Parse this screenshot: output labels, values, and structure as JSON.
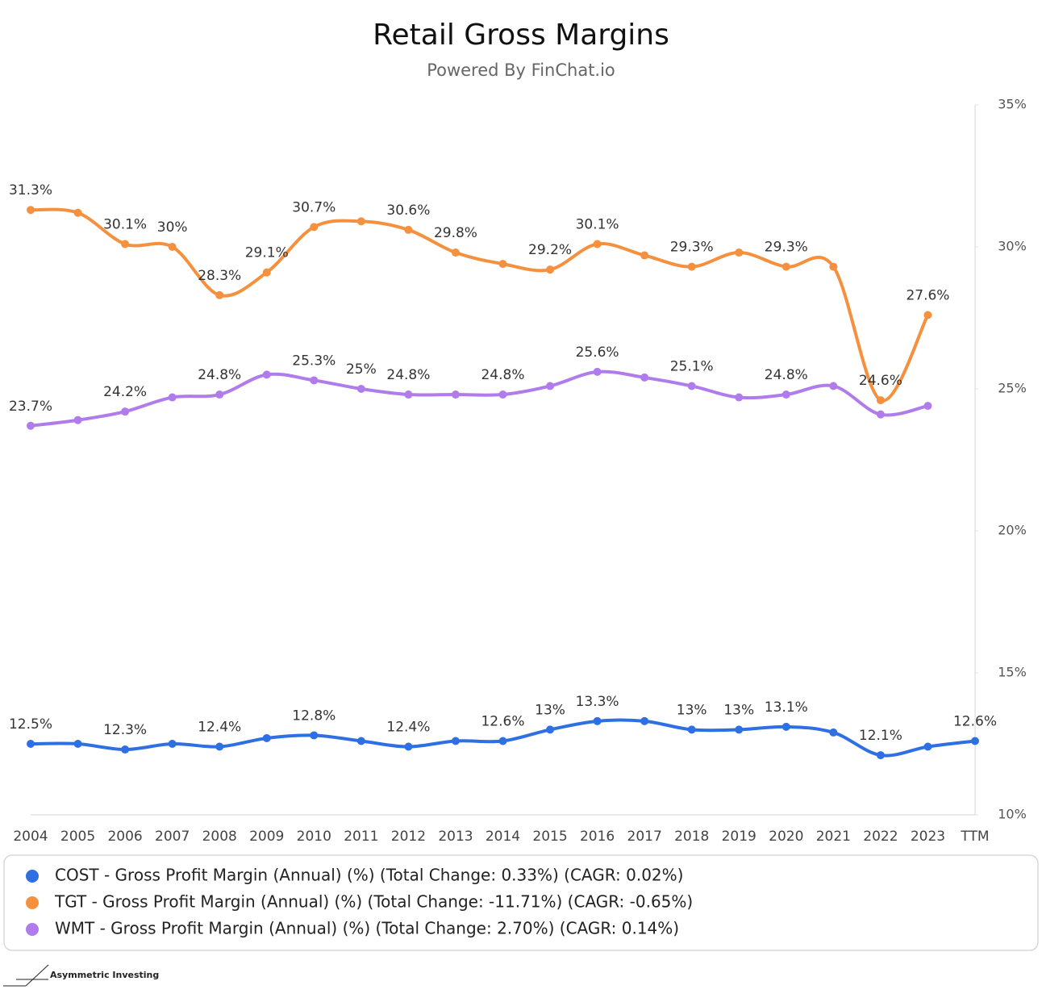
{
  "chart_data": {
    "type": "line",
    "title": "Retail Gross Margins",
    "subtitle": "Powered By FinChat.io",
    "categories": [
      "2004",
      "2005",
      "2006",
      "2007",
      "2008",
      "2009",
      "2010",
      "2011",
      "2012",
      "2013",
      "2014",
      "2015",
      "2016",
      "2017",
      "2018",
      "2019",
      "2020",
      "2021",
      "2022",
      "2023",
      "TTM"
    ],
    "ylim": [
      10,
      35
    ],
    "yticks": [
      {
        "value": 10,
        "label": "10%"
      },
      {
        "value": 15,
        "label": "15%"
      },
      {
        "value": 20,
        "label": "20%"
      },
      {
        "value": 25,
        "label": "25%"
      },
      {
        "value": 30,
        "label": "30%"
      },
      {
        "value": 35,
        "label": "35%"
      }
    ],
    "grid": false,
    "legend": "bottom",
    "series": [
      {
        "name": "COST - Gross Profit Margin (Annual) (%) (Total Change: 0.33%) (CAGR: 0.02%)",
        "color": "#2f6fe4",
        "values": [
          12.5,
          12.5,
          12.3,
          12.5,
          12.4,
          12.7,
          12.8,
          12.6,
          12.4,
          12.6,
          12.6,
          13.0,
          13.3,
          13.3,
          13.0,
          13.0,
          13.1,
          12.9,
          12.1,
          12.4,
          12.6
        ],
        "value_labels": [
          "12.5%",
          null,
          "12.3%",
          null,
          "12.4%",
          null,
          "12.8%",
          null,
          "12.4%",
          null,
          "12.6%",
          "13%",
          "13.3%",
          null,
          "13%",
          "13%",
          "13.1%",
          null,
          "12.1%",
          null,
          "12.6%"
        ]
      },
      {
        "name": "TGT - Gross Profit Margin (Annual) (%) (Total Change: -11.71%) (CAGR: -0.65%)",
        "color": "#f5913e",
        "values": [
          31.3,
          31.2,
          30.1,
          30.0,
          28.3,
          29.1,
          30.7,
          30.9,
          30.6,
          29.8,
          29.4,
          29.2,
          30.1,
          29.7,
          29.3,
          29.8,
          29.3,
          29.3,
          24.6,
          27.6,
          null
        ],
        "value_labels": [
          "31.3%",
          null,
          "30.1%",
          "30%",
          "28.3%",
          "29.1%",
          "30.7%",
          null,
          "30.6%",
          "29.8%",
          null,
          "29.2%",
          "30.1%",
          null,
          "29.3%",
          null,
          "29.3%",
          null,
          "24.6%",
          "27.6%",
          null
        ]
      },
      {
        "name": "WMT - Gross Profit Margin (Annual) (%) (Total Change: 2.70%) (CAGR: 0.14%)",
        "color": "#b07cec",
        "values": [
          23.7,
          23.9,
          24.2,
          24.7,
          24.8,
          25.5,
          25.3,
          25.0,
          24.8,
          24.8,
          24.8,
          25.1,
          25.6,
          25.4,
          25.1,
          24.7,
          24.8,
          25.1,
          24.1,
          24.4,
          null
        ],
        "value_labels": [
          "23.7%",
          null,
          "24.2%",
          null,
          "24.8%",
          null,
          "25.3%",
          "25%",
          "24.8%",
          null,
          "24.8%",
          null,
          "25.6%",
          null,
          "25.1%",
          null,
          "24.8%",
          null,
          null,
          null,
          null
        ]
      }
    ],
    "footer": "Asymmetric Investing"
  }
}
